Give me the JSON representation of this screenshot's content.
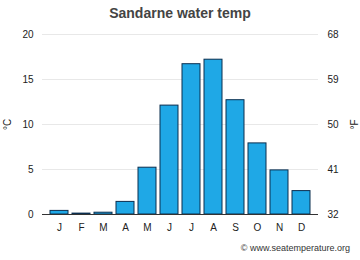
{
  "chart_data": {
    "type": "bar",
    "title": "Sandarne water temp",
    "categories": [
      "J",
      "F",
      "M",
      "A",
      "M",
      "J",
      "J",
      "A",
      "S",
      "O",
      "N",
      "D"
    ],
    "values": [
      0.4,
      0.1,
      0.2,
      1.4,
      5.2,
      12.1,
      16.7,
      17.2,
      12.7,
      7.9,
      4.9,
      2.6
    ],
    "color": "#1fa8e6",
    "y_label": "°C",
    "ylim": [
      0,
      20
    ],
    "yticks": [
      0,
      5,
      10,
      15,
      20
    ],
    "y2_label": "°F",
    "y2lim": [
      32,
      68
    ],
    "y2ticks": [
      32,
      41,
      50,
      59,
      68
    ],
    "grid": true,
    "caption": "© www.seatemperature.org"
  }
}
